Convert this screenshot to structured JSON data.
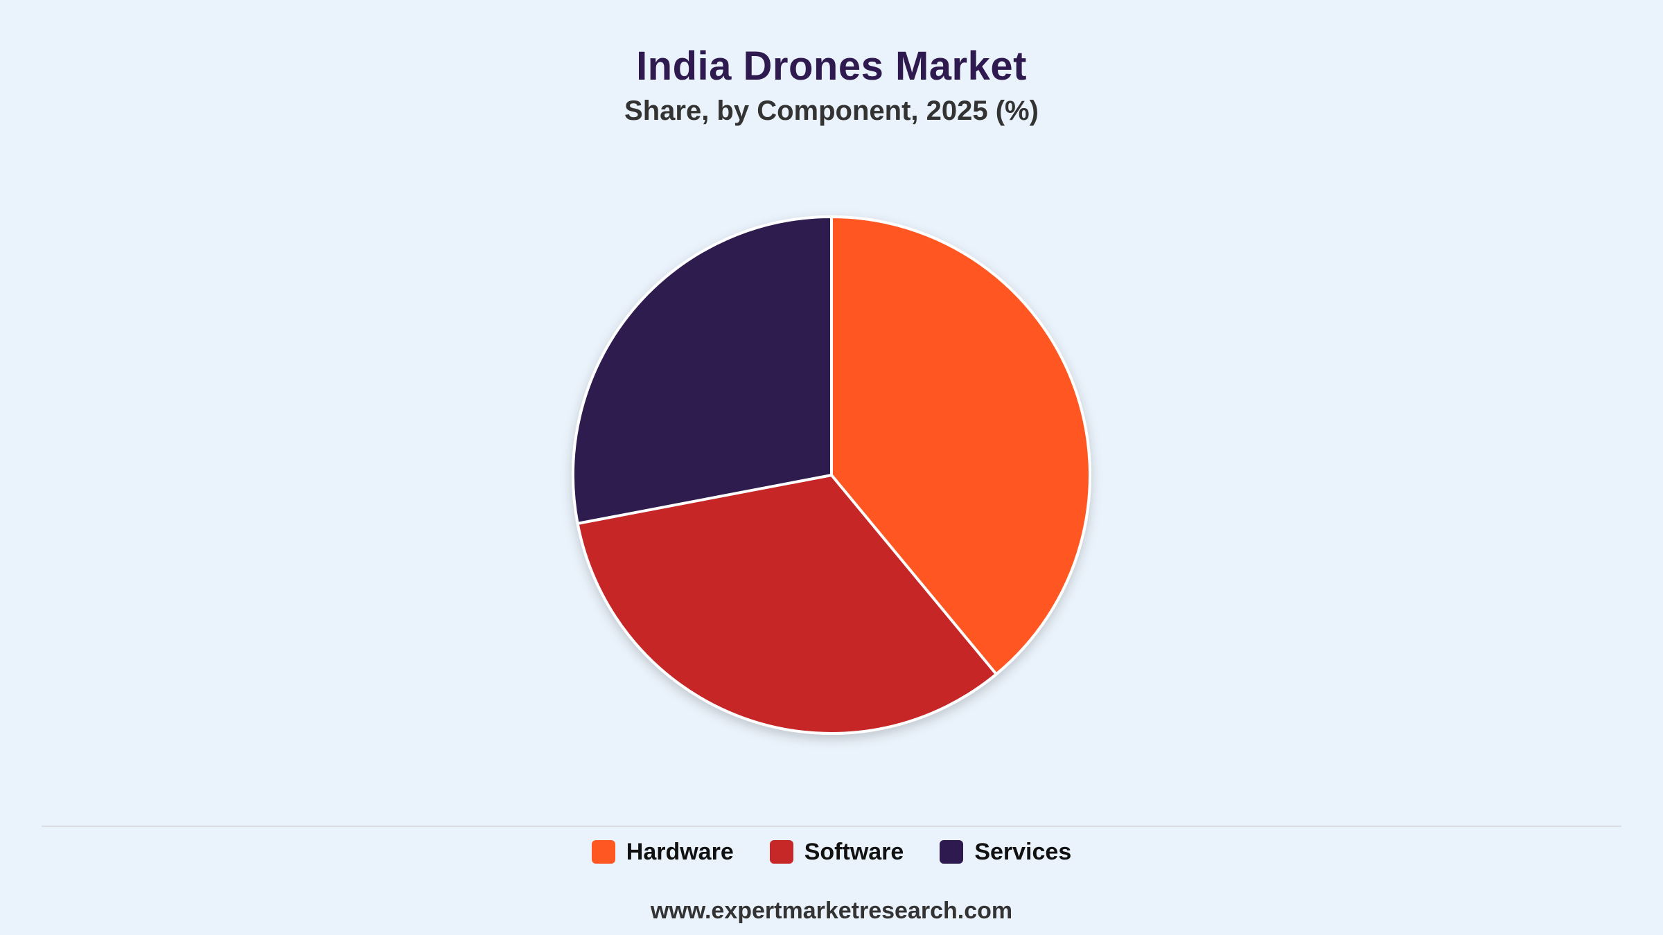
{
  "chart_data": {
    "type": "pie",
    "title": "India Drones Market",
    "subtitle": "Share, by Component, 2025 (%)",
    "categories": [
      "Hardware",
      "Software",
      "Services"
    ],
    "values": [
      39,
      33,
      28
    ],
    "colors": [
      "#ff5722",
      "#c62828",
      "#2e1a4f"
    ],
    "legend": "bottom"
  },
  "footer": "www.expertmarketresearch.com"
}
